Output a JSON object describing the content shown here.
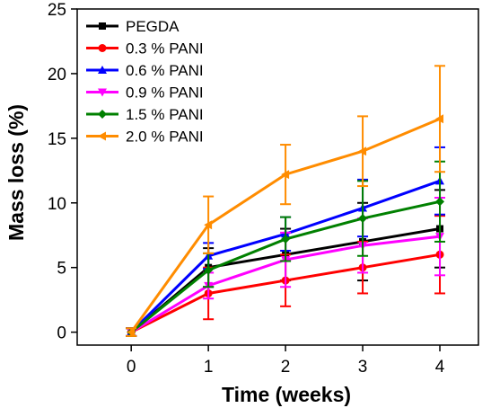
{
  "chart_data": {
    "type": "line",
    "title": "",
    "xlabel": "Time (weeks)",
    "ylabel": "Mass loss (%)",
    "xlim": [
      -0.7,
      4.5
    ],
    "ylim": [
      -1,
      25
    ],
    "xticks": [
      0,
      1,
      2,
      3,
      4
    ],
    "yticks": [
      0,
      5,
      10,
      15,
      20,
      25
    ],
    "x": [
      0,
      1,
      2,
      3,
      4
    ],
    "grid": false,
    "legend_position": "top-left",
    "series": [
      {
        "name": "PEGDA",
        "color": "#000000",
        "marker": "square",
        "values": [
          0,
          5.0,
          6.0,
          7.0,
          8.0
        ],
        "errors": [
          0.3,
          1.5,
          2.0,
          3.0,
          3.0
        ]
      },
      {
        "name": "0.3 % PANI",
        "color": "#ff0000",
        "marker": "circle",
        "values": [
          0,
          3.0,
          4.0,
          5.0,
          6.0
        ],
        "errors": [
          0.3,
          2.0,
          2.0,
          2.0,
          3.0
        ]
      },
      {
        "name": "0.6 % PANI",
        "color": "#0000ff",
        "marker": "triangle-up",
        "values": [
          0,
          5.9,
          7.6,
          9.6,
          11.7
        ],
        "errors": [
          0.3,
          1.0,
          1.3,
          2.2,
          2.6
        ]
      },
      {
        "name": "0.9 % PANI",
        "color": "#ff00ff",
        "marker": "triangle-down",
        "values": [
          0,
          3.6,
          5.6,
          6.7,
          7.4
        ],
        "errors": [
          0.3,
          1.0,
          2.1,
          2.1,
          3.0
        ]
      },
      {
        "name": "1.5 % PANI",
        "color": "#008000",
        "marker": "diamond",
        "values": [
          0,
          4.8,
          7.2,
          8.8,
          10.1
        ],
        "errors": [
          0.3,
          1.3,
          1.7,
          2.9,
          3.1
        ]
      },
      {
        "name": "2.0 % PANI",
        "color": "#ff8c00",
        "marker": "triangle-left",
        "values": [
          0,
          8.3,
          12.2,
          14.0,
          16.5
        ],
        "errors": [
          0.3,
          2.2,
          2.3,
          2.7,
          4.1
        ]
      }
    ]
  }
}
